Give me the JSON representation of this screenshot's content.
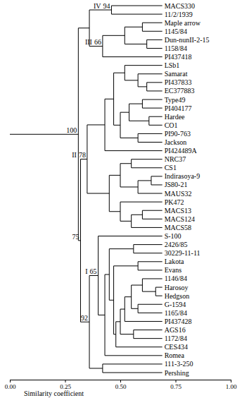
{
  "chart_data": {
    "type": "dendrogram",
    "x_label": "Similarity coefficient",
    "xlim": [
      0,
      1
    ],
    "xticks": [
      {
        "value": 0,
        "label": "0.00"
      },
      {
        "value": 0.25,
        "label": "0.25"
      },
      {
        "value": 0.5,
        "label": "0.50"
      },
      {
        "value": 0.75,
        "label": "0.75"
      },
      {
        "value": 1,
        "label": "1.00"
      }
    ],
    "leaf_similarity": 0.69,
    "tree": {
      "similarity": 0.31,
      "bootstrap": 100,
      "children": [
        {
          "similarity": 0.36,
          "children": [
            {
              "similarity": 0.46,
              "cluster": "IV",
              "bootstrap": 94,
              "children": [
                {
                  "label": "MACS330"
                },
                {
                  "label": "11/2/1939"
                }
              ]
            },
            {
              "similarity": 0.42,
              "cluster": "III",
              "bootstrap": 66,
              "children": [
                {
                  "similarity": 0.52,
                  "children": [
                    {
                      "similarity": 0.6,
                      "children": [
                        {
                          "label": "Maple arrow"
                        },
                        {
                          "label": "1145/84"
                        }
                      ]
                    },
                    {
                      "similarity": 0.62,
                      "children": [
                        {
                          "label": "Dun-nunII-2-15"
                        },
                        {
                          "label": "1158/84"
                        }
                      ]
                    }
                  ]
                },
                {
                  "label": "PI437418"
                }
              ]
            }
          ]
        },
        {
          "similarity": 0.32,
          "bootstrap": 75,
          "children": [
            {
              "similarity": 0.35,
              "cluster": "II",
              "bootstrap": 78,
              "children": [
                {
                  "similarity": 0.43,
                  "children": [
                    {
                      "similarity": 0.47,
                      "children": [
                        {
                          "similarity": 0.52,
                          "children": [
                            {
                              "label": "LSb1"
                            },
                            {
                              "similarity": 0.58,
                              "children": [
                                {
                                  "label": "Samarat"
                                },
                                {
                                  "similarity": 0.62,
                                  "children": [
                                    {
                                      "label": "PI437833"
                                    },
                                    {
                                      "label": "EC377883"
                                    }
                                  ]
                                }
                              ]
                            }
                          ]
                        },
                        {
                          "similarity": 0.5,
                          "children": [
                            {
                              "similarity": 0.54,
                              "children": [
                                {
                                  "similarity": 0.6,
                                  "children": [
                                    {
                                      "label": "Type49"
                                    },
                                    {
                                      "label": "PI404177"
                                    }
                                  ]
                                },
                                {
                                  "similarity": 0.63,
                                  "children": [
                                    {
                                      "label": "Hardee"
                                    },
                                    {
                                      "label": "CO1"
                                    }
                                  ]
                                }
                              ]
                            },
                            {
                              "similarity": 0.58,
                              "children": [
                                {
                                  "label": "PI90-763"
                                },
                                {
                                  "label": "Jackson"
                                }
                              ]
                            }
                          ]
                        }
                      ]
                    },
                    {
                      "label": "PI424489A"
                    }
                  ]
                },
                {
                  "similarity": 0.45,
                  "children": [
                    {
                      "similarity": 0.5,
                      "children": [
                        {
                          "similarity": 0.55,
                          "children": [
                            {
                              "label": "NRC37"
                            },
                            {
                              "label": "CS1"
                            }
                          ]
                        },
                        {
                          "similarity": 0.58,
                          "children": [
                            {
                              "similarity": 0.64,
                              "children": [
                                {
                                  "label": "Indirasoya-9"
                                },
                                {
                                  "label": "JS80-21"
                                }
                              ]
                            },
                            {
                              "label": "MAUS32"
                            }
                          ]
                        }
                      ]
                    },
                    {
                      "similarity": 0.5,
                      "children": [
                        {
                          "label": "PK472"
                        },
                        {
                          "similarity": 0.55,
                          "children": [
                            {
                              "similarity": 0.6,
                              "children": [
                                {
                                  "label": "MACS13"
                                },
                                {
                                  "label": "MACS124"
                                }
                              ]
                            },
                            {
                              "label": "MACS58"
                            }
                          ]
                        }
                      ]
                    }
                  ]
                }
              ]
            },
            {
              "similarity": 0.36,
              "bootstrap": 92,
              "children": [
                {
                  "similarity": 0.4,
                  "cluster": "I",
                  "bootstrap": 65,
                  "children": [
                    {
                      "label": "S-100"
                    },
                    {
                      "similarity": 0.43,
                      "children": [
                        {
                          "similarity": 0.45,
                          "children": [
                            {
                              "similarity": 0.56,
                              "children": [
                                {
                                  "label": "2426/85"
                                },
                                {
                                  "label": "30229-11-11"
                                }
                              ]
                            },
                            {
                              "similarity": 0.47,
                              "children": [
                                {
                                  "similarity": 0.58,
                                  "children": [
                                    {
                                      "label": "Lakota"
                                    },
                                    {
                                      "label": "Evans"
                                    }
                                  ]
                                },
                                {
                                  "similarity": 0.48,
                                  "children": [
                                    {
                                      "similarity": 0.5,
                                      "children": [
                                        {
                                          "similarity": 0.52,
                                          "children": [
                                            {
                                              "similarity": 0.55,
                                              "children": [
                                                {
                                                  "similarity": 0.6,
                                                  "children": [
                                                    {
                                                      "label": "1146/84"
                                                    },
                                                    {
                                                      "similarity": 0.66,
                                                      "children": [
                                                        {
                                                          "label": "Harosoy"
                                                        },
                                                        {
                                                          "label": "Hedgson"
                                                        }
                                                      ]
                                                    }
                                                  ]
                                                },
                                                {
                                                  "similarity": 0.58,
                                                  "children": [
                                                    {
                                                      "label": "G-1594"
                                                    },
                                                    {
                                                      "label": "1165/84"
                                                    }
                                                  ]
                                                }
                                              ]
                                            },
                                            {
                                              "label": "PI437428"
                                            }
                                          ]
                                        },
                                        {
                                          "similarity": 0.56,
                                          "children": [
                                            {
                                              "label": "AGS16"
                                            },
                                            {
                                              "label": "1172/84"
                                            }
                                          ]
                                        }
                                      ]
                                    },
                                    {
                                      "label": "CES434"
                                    }
                                  ]
                                }
                              ]
                            }
                          ]
                        },
                        {
                          "label": "Romea"
                        }
                      ]
                    }
                  ]
                },
                {
                  "similarity": 0.42,
                  "children": [
                    {
                      "label": "111-3-250"
                    },
                    {
                      "label": "Pershing"
                    }
                  ]
                }
              ]
            }
          ]
        }
      ]
    }
  }
}
